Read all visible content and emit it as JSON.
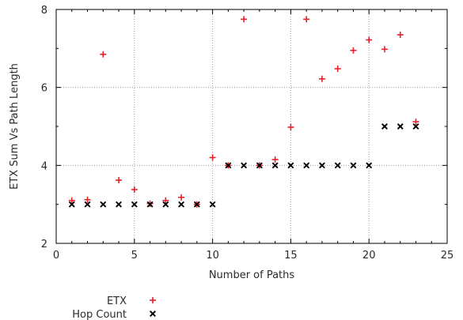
{
  "chart_data": {
    "type": "scatter",
    "xlabel": "Number of Paths",
    "ylabel": "ETX Sum Vs Path Length",
    "xlim": [
      0,
      25
    ],
    "ylim": [
      2,
      8
    ],
    "x_ticks": [
      "0",
      "5",
      "10",
      "15",
      "20",
      "25"
    ],
    "y_ticks": [
      "2",
      "4",
      "6",
      "8"
    ],
    "grid": true,
    "legend_position": "bottom-left",
    "series": [
      {
        "name": "ETX",
        "marker": "plus",
        "color": "#e8202a",
        "x": [
          1,
          2,
          3,
          4,
          5,
          6,
          7,
          8,
          9,
          10,
          11,
          12,
          13,
          14,
          15,
          16,
          17,
          18,
          19,
          20,
          21,
          22,
          23
        ],
        "y": [
          3.1,
          3.12,
          6.85,
          3.62,
          3.38,
          3.02,
          3.1,
          3.18,
          3.0,
          4.2,
          4.0,
          7.75,
          4.0,
          4.15,
          4.98,
          7.75,
          6.22,
          6.48,
          6.95,
          7.22,
          6.98,
          7.35,
          5.12
        ]
      },
      {
        "name": "Hop Count",
        "marker": "cross",
        "color": "#000000",
        "x": [
          1,
          2,
          3,
          4,
          5,
          6,
          7,
          8,
          9,
          10,
          11,
          12,
          13,
          14,
          15,
          16,
          17,
          18,
          19,
          20,
          21,
          22,
          23
        ],
        "y": [
          3,
          3,
          3,
          3,
          3,
          3,
          3,
          3,
          3,
          3,
          4,
          4,
          4,
          4,
          4,
          4,
          4,
          4,
          4,
          4,
          5,
          5,
          5
        ]
      }
    ]
  }
}
